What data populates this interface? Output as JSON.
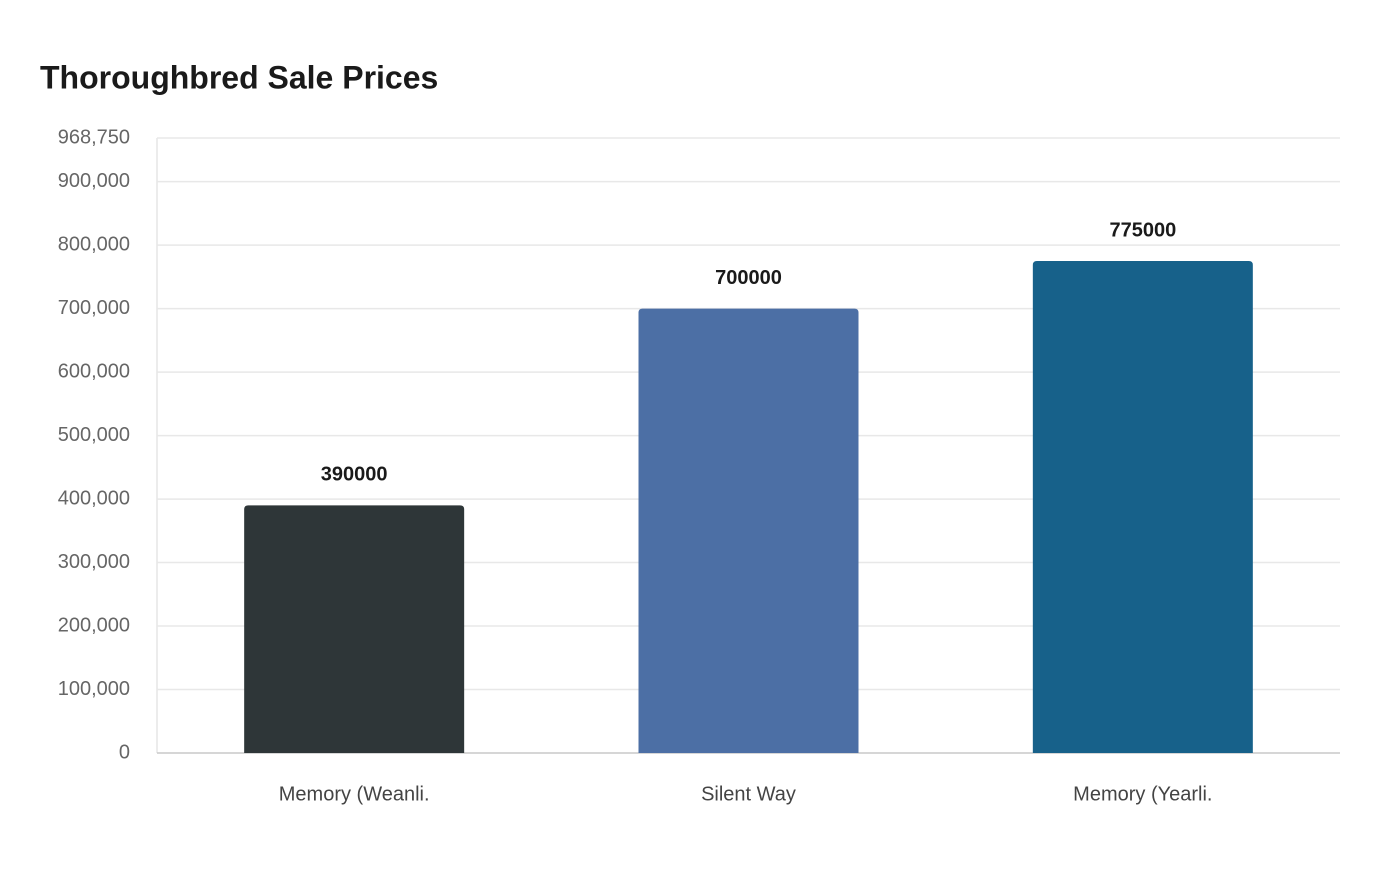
{
  "chart_data": {
    "type": "bar",
    "title": "Thoroughbred Sale Prices",
    "categories": [
      "Memory (Weanli.",
      "Silent Way",
      "Memory (Yearli."
    ],
    "values": [
      390000,
      700000,
      775000
    ],
    "colors": [
      "#2e3638",
      "#4c6fa5",
      "#17618a"
    ],
    "ylim": [
      0,
      968750
    ],
    "yticks": [
      0,
      {
        "value": 100000,
        "label": "100,000"
      },
      {
        "value": 200000,
        "label": "200,000"
      },
      {
        "value": 300000,
        "label": "300,000"
      },
      {
        "value": 400000,
        "label": "400,000"
      },
      {
        "value": 500000,
        "label": "500,000"
      },
      {
        "value": 600000,
        "label": "600,000"
      },
      {
        "value": 700000,
        "label": "700,000"
      },
      {
        "value": 800000,
        "label": "800,000"
      },
      {
        "value": 900000,
        "label": "900,000"
      },
      {
        "value": 968750,
        "label": "968,750"
      }
    ],
    "grid": true
  }
}
